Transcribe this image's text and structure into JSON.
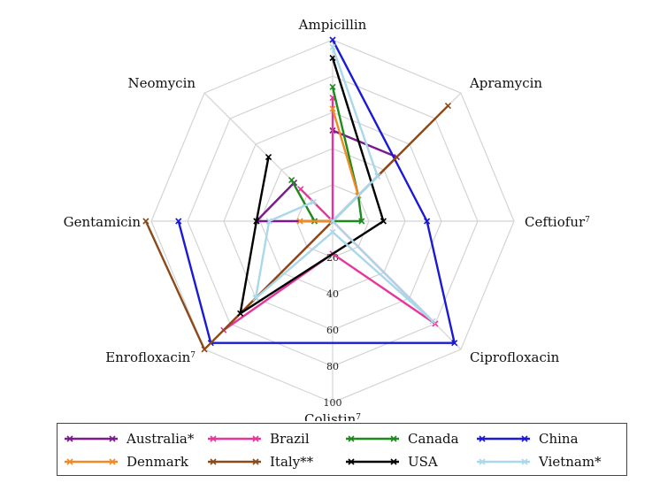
{
  "chart_data": {
    "type": "radar",
    "axes": [
      "Ampicillin",
      "Apramycin",
      "Ceftiofur",
      "Ciprofloxacin",
      "Colistin",
      "Enrofloxacin",
      "Gentamicin",
      "Neomycin"
    ],
    "axis_superscripts": [
      "",
      "",
      "7",
      "",
      "7",
      "7",
      "",
      ""
    ],
    "radial_ticks": [
      "20",
      "40",
      "60",
      "80",
      "100"
    ],
    "rmax": 100,
    "grid": true,
    "series": [
      {
        "name": "Australia*",
        "color": "#7b1a8c",
        "values": [
          50,
          50,
          null,
          null,
          null,
          0,
          42,
          30
        ]
      },
      {
        "name": "Brazil",
        "color": "#e8359c",
        "values": [
          68,
          0,
          0,
          80,
          18,
          85,
          0,
          25
        ]
      },
      {
        "name": "Canada",
        "color": "#1e8a1e",
        "values": [
          74,
          20,
          16,
          0,
          0,
          0,
          10,
          32
        ]
      },
      {
        "name": "China",
        "color": "#1a1ad6",
        "values": [
          100,
          null,
          52,
          95,
          null,
          95,
          85,
          null
        ]
      },
      {
        "name": "Denmark",
        "color": "#f08a24",
        "values": [
          62,
          20,
          0,
          0,
          0,
          0,
          18,
          0
        ]
      },
      {
        "name": "Italy**",
        "color": "#8a4a1a",
        "values": [
          null,
          90,
          null,
          null,
          null,
          100,
          103,
          null
        ]
      },
      {
        "name": "USA",
        "color": "#000000",
        "values": [
          90,
          null,
          28,
          null,
          null,
          72,
          42,
          50
        ]
      },
      {
        "name": "Vietnam*",
        "color": "#a8d8ea",
        "values": [
          96,
          35,
          0,
          78,
          6,
          60,
          35,
          15
        ]
      }
    ]
  }
}
